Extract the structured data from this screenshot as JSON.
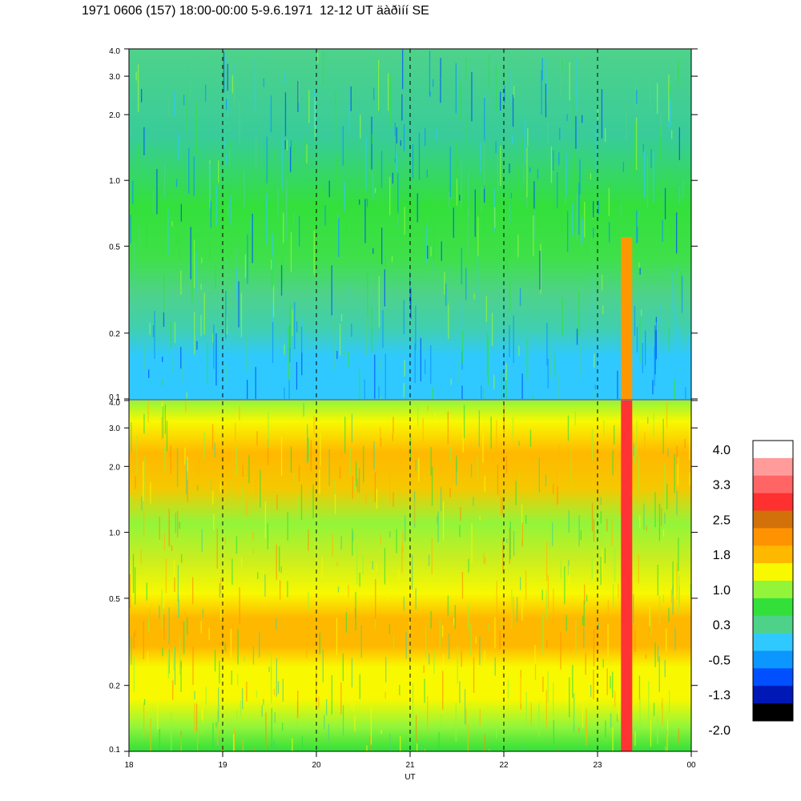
{
  "title": "1971 0606 (157) 18:00-00:00 5-9.6.1971  12-12 UT äàðìíí SE",
  "chart_data": [
    {
      "type": "heatmap",
      "panel": "top",
      "x_range": [
        18,
        24
      ],
      "y_range": [
        0.1,
        4.0
      ],
      "y_scale": "log",
      "y_ticks": [
        "4.0",
        "3.0",
        "2.0",
        "1.0",
        "0.5",
        "0.2",
        "0.1"
      ],
      "y_tick_values": [
        4.0,
        3.0,
        2.0,
        1.0,
        0.5,
        0.2,
        0.1
      ],
      "grid": "dashed vertical lines at each hour",
      "dominant_colors": [
        "#2fc9ff",
        "#4ed28a",
        "#33e03a",
        "#0c96ff"
      ],
      "event": {
        "start": 23.25,
        "end": 23.37,
        "y_max": 0.55,
        "color": "#ff9800"
      }
    },
    {
      "type": "heatmap",
      "panel": "bottom",
      "x_range": [
        18,
        24
      ],
      "y_range": [
        0.1,
        4.0
      ],
      "y_scale": "log",
      "y_ticks": [
        "4.0",
        "3.0",
        "2.0",
        "1.0",
        "0.5",
        "0.2",
        "0.1"
      ],
      "y_tick_values": [
        4.0,
        3.0,
        2.0,
        1.0,
        0.5,
        0.2,
        0.1
      ],
      "grid": "dashed vertical lines at each hour",
      "dominant_colors": [
        "#f5f500",
        "#ffb800",
        "#92f53a",
        "#33e03a"
      ],
      "event": {
        "start": 23.25,
        "end": 23.37,
        "y_max": 4.0,
        "color": "#ff3333"
      }
    }
  ],
  "x_axis": {
    "label": "UT",
    "ticks": [
      "18",
      "19",
      "20",
      "21",
      "22",
      "23",
      "00"
    ],
    "tick_values": [
      18,
      19,
      20,
      21,
      22,
      23,
      24
    ]
  },
  "colorbar": {
    "labels": [
      "4.0",
      "3.3",
      "2.5",
      "1.8",
      "1.0",
      "0.3",
      "-0.5",
      "-1.3",
      "-2.0"
    ],
    "colors": [
      "#ffffff",
      "#ff9b9b",
      "#ff6565",
      "#ff3030",
      "#d2700a",
      "#ff9200",
      "#ffb800",
      "#f8f800",
      "#92f53a",
      "#33e03a",
      "#4ed28a",
      "#2fc9ff",
      "#0c96ff",
      "#0050ff",
      "#0018b5",
      "#000000"
    ]
  }
}
